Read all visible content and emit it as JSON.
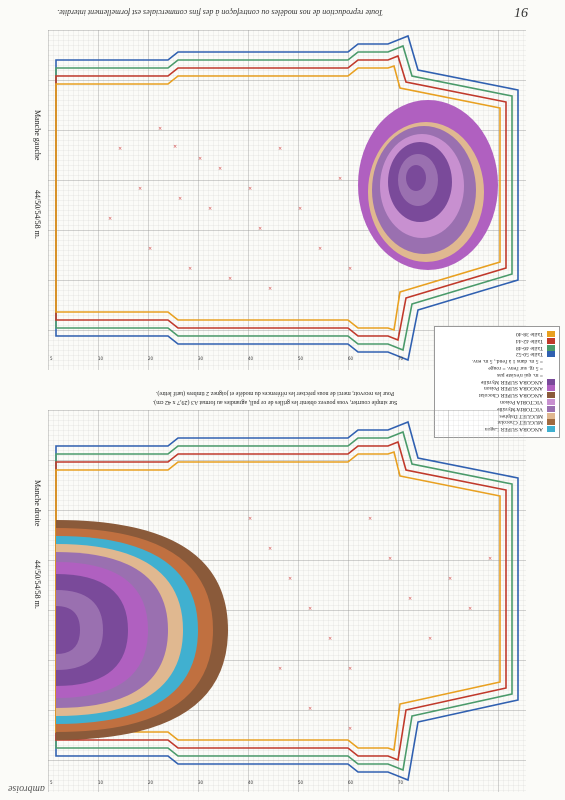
{
  "header": {
    "copyright_note": "Toute reproduction de nos modèles ou contrefaçon à des fins commerciales est formellement interdite.",
    "page_number": "16"
  },
  "brand": "ambroise",
  "charts": {
    "left_sleeve": {
      "label": "Manche gauche",
      "sizes": "44/50/54/58 m."
    },
    "right_sleeve": {
      "label": "Manche droite",
      "sizes": "44/50/54/58 m."
    }
  },
  "note": {
    "line1": "Sur simple courrier, vous pouvez obtenir les grilles de ce pull, agrandies au format A3 (29,7 x 42 cm).",
    "line2": "Pour les recevoir, merci de nous préciser les références du modèle et joignez 2 timbres (tarif lettre)."
  },
  "legend": {
    "sizes": [
      {
        "label": "Taille 38-40",
        "color": "#e8a020"
      },
      {
        "label": "Taille 42-44",
        "color": "#c0392b"
      },
      {
        "label": "Taille 46-48",
        "color": "#4a9a6a"
      },
      {
        "label": "Taille 50-52",
        "color": "#3060b0"
      }
    ],
    "symbols": [
      "= 5 m. dans 1 à l'end., 5 m. env.",
      "= 5 rg. sur l'env. = rouge",
      "= m. qui n'existe pas"
    ],
    "colors": [
      {
        "label": "ANGORA SUPER Myrtille",
        "color": "#7a4a9a"
      },
      {
        "label": "ANGORA SUPER Poison",
        "color": "#b060c0"
      },
      {
        "label": "ANGORA SUPER Chocolat",
        "color": "#8a5a3a"
      },
      {
        "label": "VICTORIA Poison",
        "color": "#c890d0"
      },
      {
        "label": "VICTORIA Myrtille",
        "color": "#9a70b0"
      },
      {
        "label": "MUGUET Dalphes",
        "color": "#e0b890"
      },
      {
        "label": "MUGUET Chocolat",
        "color": "#a06a40"
      },
      {
        "label": "ANGORA SUPER Lagon",
        "color": "#40b0d0"
      }
    ]
  }
}
